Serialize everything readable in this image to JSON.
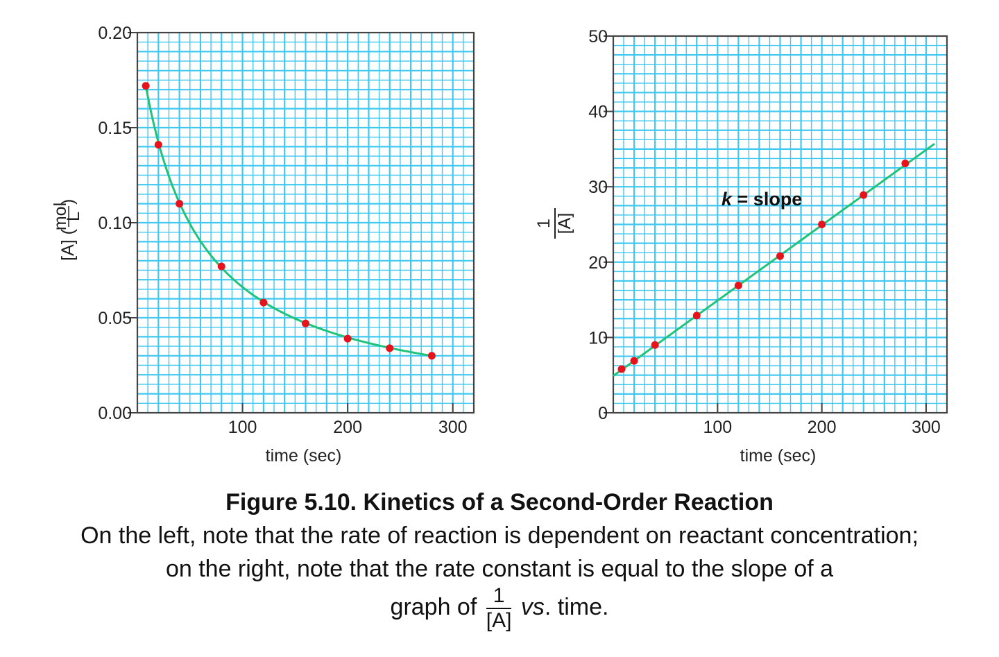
{
  "chart_data": [
    {
      "type": "scatter",
      "ylabel": "[A] (mol/L)",
      "ylabel_main": "[A] (",
      "ylabel_frac_num": "mol",
      "ylabel_frac_den": "L",
      "ylabel_close": ")",
      "xlabel": "time (sec)",
      "xlim": [
        0,
        320
      ],
      "ylim": [
        0,
        0.2
      ],
      "xticks": [
        100,
        200,
        300
      ],
      "yticks": [
        0,
        0.05,
        0.1,
        0.15,
        0.2
      ],
      "ytick_labels": [
        "0.00",
        "0.05",
        "0.10",
        "0.15",
        "0.20"
      ],
      "grid": true,
      "series": [
        {
          "x": [
            8,
            20,
            40,
            80,
            120,
            160,
            200,
            240,
            280
          ],
          "values": [
            0.172,
            0.141,
            0.11,
            0.077,
            0.058,
            0.047,
            0.039,
            0.034,
            0.03
          ],
          "fit": "curve"
        }
      ]
    },
    {
      "type": "scatter",
      "ylabel": "1/[A]",
      "ylabel_frac_num": "1",
      "ylabel_frac_den": "[A]",
      "xlabel": "time (sec)",
      "xlim": [
        0,
        320
      ],
      "ylim": [
        0,
        50
      ],
      "xticks": [
        100,
        200,
        300
      ],
      "yticks": [
        0,
        10,
        20,
        30,
        40,
        50
      ],
      "ytick_labels": [
        "0",
        "10",
        "20",
        "30",
        "40",
        "50"
      ],
      "grid": true,
      "annotation": {
        "k": "k",
        "rest": " = slope"
      },
      "series": [
        {
          "x": [
            8,
            20,
            40,
            80,
            120,
            160,
            200,
            240,
            280
          ],
          "values": [
            5.8,
            6.9,
            9.0,
            12.9,
            16.9,
            20.8,
            25.0,
            28.9,
            33.1
          ],
          "fit": "line",
          "fit_x": [
            0,
            308
          ],
          "fit_y": [
            4.9,
            35.7
          ]
        }
      ]
    }
  ],
  "colors": {
    "grid": "#3fc8f2",
    "curve": "#1fc37a",
    "points": "#e8121c",
    "frame": "#444444"
  },
  "caption": {
    "title": "Figure 5.10.  Kinetics of a Second-Order Reaction",
    "line1": "On the left, note that the rate of reaction is dependent on reactant concentration;",
    "line2": "on the right, note that the rate constant is equal to the slope of a",
    "line3_pre": "graph of",
    "frac_num": "1",
    "frac_den": "[A]",
    "line3_vs": "vs",
    "line3_post": ". time."
  }
}
